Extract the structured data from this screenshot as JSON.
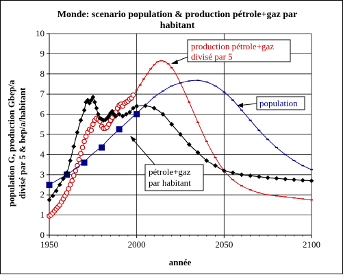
{
  "chart_data": {
    "type": "line",
    "title": "Monde: scenario population & production pétrole+gaz par habitant",
    "title_lines": [
      "Monde: scenario population & production pétrole+gaz par",
      "habitant"
    ],
    "xlabel": "année",
    "ylabel_lines": [
      "population G, production Gbep/a",
      "divisé par 5 & bep/a/habitant"
    ],
    "xlim": [
      1950,
      2100
    ],
    "ylim": [
      0,
      10
    ],
    "xticks": [
      1950,
      2000,
      2050,
      2100
    ],
    "yticks": [
      0,
      1,
      2,
      3,
      4,
      5,
      6,
      7,
      8,
      9,
      10
    ],
    "grid": "major gridlines on both axes",
    "legend": "callout boxes with arrows",
    "colors": {
      "oil_gas_per_capita": "#000000",
      "production": "#cc0000",
      "population": "#00008b"
    },
    "annotations": [
      {
        "series": "production",
        "lines": [
          "production pétrole+gaz",
          "divisé par 5"
        ],
        "color": "#cc0000"
      },
      {
        "series": "population",
        "lines": [
          "population"
        ],
        "color": "#00008b"
      },
      {
        "series": "oil_gas_per_capita",
        "lines": [
          "pétrole+gaz",
          "par habitant"
        ],
        "color": "#000000"
      }
    ],
    "series": [
      {
        "key": "oil_gas_per_capita",
        "marker": "diamond",
        "curve": [
          [
            1950,
            1.8
          ],
          [
            1955,
            2.4
          ],
          [
            1960,
            3.1
          ],
          [
            1962,
            3.7
          ],
          [
            1964,
            4.4
          ],
          [
            1966,
            5.1
          ],
          [
            1968,
            5.7
          ],
          [
            1970,
            6.2
          ],
          [
            1971,
            6.6
          ],
          [
            1972,
            6.7
          ],
          [
            1973,
            6.5
          ],
          [
            1974,
            6.7
          ],
          [
            1975,
            6.85
          ],
          [
            1976,
            6.6
          ],
          [
            1977,
            6.3
          ],
          [
            1978,
            6.0
          ],
          [
            1980,
            5.8
          ],
          [
            1982,
            5.7
          ],
          [
            1984,
            5.8
          ],
          [
            1985,
            6.0
          ],
          [
            1986,
            6.1
          ],
          [
            1987,
            6.0
          ],
          [
            1988,
            5.9
          ],
          [
            1990,
            6.0
          ],
          [
            1992,
            5.9
          ],
          [
            1994,
            6.0
          ],
          [
            1996,
            6.1
          ],
          [
            1998,
            6.3
          ],
          [
            2000,
            6.4
          ],
          [
            2005,
            6.42
          ],
          [
            2010,
            6.3
          ],
          [
            2015,
            6.0
          ],
          [
            2020,
            5.5
          ],
          [
            2025,
            5.0
          ],
          [
            2030,
            4.5
          ],
          [
            2035,
            4.1
          ],
          [
            2040,
            3.7
          ],
          [
            2045,
            3.45
          ],
          [
            2050,
            3.2
          ],
          [
            2055,
            3.1
          ],
          [
            2060,
            3.0
          ],
          [
            2065,
            2.95
          ],
          [
            2070,
            2.9
          ],
          [
            2075,
            2.85
          ],
          [
            2080,
            2.82
          ],
          [
            2090,
            2.75
          ],
          [
            2100,
            2.7
          ]
        ],
        "markers": [
          [
            1950,
            1.75
          ],
          [
            1952,
            1.95
          ],
          [
            1954,
            2.2
          ],
          [
            1956,
            2.5
          ],
          [
            1958,
            2.8
          ],
          [
            1960,
            3.1
          ],
          [
            1962,
            3.7
          ],
          [
            1964,
            4.4
          ],
          [
            1966,
            5.1
          ],
          [
            1968,
            5.7
          ],
          [
            1970,
            6.2
          ],
          [
            1971,
            6.6
          ],
          [
            1972,
            6.7
          ],
          [
            1973,
            6.55
          ],
          [
            1974,
            6.7
          ],
          [
            1975,
            6.85
          ],
          [
            1976,
            6.6
          ],
          [
            1977,
            6.3
          ],
          [
            1978,
            6.0
          ],
          [
            1979,
            5.8
          ],
          [
            1980,
            5.75
          ],
          [
            1981,
            5.7
          ],
          [
            1982,
            5.72
          ],
          [
            1983,
            5.8
          ],
          [
            1984,
            5.9
          ],
          [
            1985,
            6.05
          ],
          [
            1986,
            6.15
          ],
          [
            1987,
            6.0
          ],
          [
            1988,
            5.9
          ],
          [
            1990,
            6.0
          ],
          [
            1992,
            5.9
          ],
          [
            1994,
            6.0
          ],
          [
            1996,
            6.1
          ],
          [
            1998,
            6.3
          ],
          [
            2000,
            6.4
          ],
          [
            2005,
            6.42
          ],
          [
            2010,
            6.3
          ],
          [
            2015,
            6.0
          ],
          [
            2020,
            5.5
          ],
          [
            2025,
            5.0
          ],
          [
            2030,
            4.5
          ],
          [
            2035,
            4.1
          ],
          [
            2040,
            3.7
          ],
          [
            2045,
            3.45
          ],
          [
            2050,
            3.2
          ],
          [
            2055,
            3.1
          ],
          [
            2060,
            3.0
          ],
          [
            2065,
            2.95
          ],
          [
            2070,
            2.9
          ],
          [
            2075,
            2.85
          ],
          [
            2080,
            2.82
          ],
          [
            2085,
            2.78
          ],
          [
            2090,
            2.75
          ],
          [
            2095,
            2.72
          ],
          [
            2100,
            2.7
          ]
        ]
      },
      {
        "key": "production",
        "marker": "open-circle then small tick",
        "curve": [
          [
            1950,
            0.95
          ],
          [
            1955,
            1.35
          ],
          [
            1960,
            1.95
          ],
          [
            1963,
            2.6
          ],
          [
            1966,
            3.4
          ],
          [
            1969,
            4.3
          ],
          [
            1972,
            5.0
          ],
          [
            1974,
            5.5
          ],
          [
            1976,
            5.8
          ],
          [
            1978,
            5.75
          ],
          [
            1980,
            5.45
          ],
          [
            1982,
            5.3
          ],
          [
            1984,
            5.4
          ],
          [
            1986,
            5.6
          ],
          [
            1988,
            5.9
          ],
          [
            1990,
            6.2
          ],
          [
            1992,
            6.35
          ],
          [
            1994,
            6.5
          ],
          [
            1996,
            6.7
          ],
          [
            1998,
            6.9
          ],
          [
            2000,
            7.2
          ],
          [
            2003,
            7.6
          ],
          [
            2006,
            8.0
          ],
          [
            2009,
            8.35
          ],
          [
            2012,
            8.6
          ],
          [
            2015,
            8.65
          ],
          [
            2018,
            8.5
          ],
          [
            2021,
            8.2
          ],
          [
            2025,
            7.55
          ],
          [
            2030,
            6.6
          ],
          [
            2035,
            5.6
          ],
          [
            2040,
            4.65
          ],
          [
            2045,
            3.85
          ],
          [
            2050,
            3.2
          ],
          [
            2055,
            2.75
          ],
          [
            2060,
            2.45
          ],
          [
            2065,
            2.25
          ],
          [
            2070,
            2.1
          ],
          [
            2075,
            2.0
          ],
          [
            2080,
            1.95
          ],
          [
            2090,
            1.85
          ],
          [
            2100,
            1.75
          ]
        ],
        "circles": [
          [
            1950,
            0.95
          ],
          [
            1951,
            1.0
          ],
          [
            1952,
            1.1
          ],
          [
            1953,
            1.2
          ],
          [
            1954,
            1.3
          ],
          [
            1955,
            1.4
          ],
          [
            1956,
            1.5
          ],
          [
            1957,
            1.65
          ],
          [
            1958,
            1.8
          ],
          [
            1959,
            1.95
          ],
          [
            1960,
            2.1
          ],
          [
            1961,
            2.3
          ],
          [
            1962,
            2.5
          ],
          [
            1963,
            2.7
          ],
          [
            1964,
            2.95
          ],
          [
            1965,
            3.2
          ],
          [
            1966,
            3.45
          ],
          [
            1967,
            3.75
          ],
          [
            1968,
            4.05
          ],
          [
            1969,
            4.35
          ],
          [
            1970,
            4.65
          ],
          [
            1971,
            4.9
          ],
          [
            1972,
            5.1
          ],
          [
            1973,
            5.25
          ],
          [
            1974,
            5.2
          ],
          [
            1975,
            5.5
          ],
          [
            1976,
            5.7
          ],
          [
            1977,
            5.8
          ],
          [
            1978,
            5.75
          ],
          [
            1979,
            5.65
          ],
          [
            1980,
            5.4
          ],
          [
            1981,
            5.3
          ],
          [
            1982,
            5.3
          ],
          [
            1983,
            5.35
          ],
          [
            1984,
            5.5
          ],
          [
            1985,
            5.7
          ],
          [
            1986,
            5.85
          ],
          [
            1987,
            6.0
          ],
          [
            1988,
            6.1
          ],
          [
            1989,
            6.3
          ],
          [
            1990,
            6.45
          ],
          [
            1991,
            6.5
          ],
          [
            1992,
            6.4
          ],
          [
            1993,
            6.55
          ],
          [
            1994,
            6.6
          ],
          [
            1995,
            6.65
          ],
          [
            1996,
            6.75
          ],
          [
            1997,
            6.8
          ],
          [
            1998,
            6.95
          ]
        ],
        "ticks": [
          [
            2000,
            7.2
          ],
          [
            2002,
            7.45
          ],
          [
            2004,
            7.75
          ],
          [
            2006,
            8.0
          ],
          [
            2008,
            8.25
          ],
          [
            2010,
            8.45
          ],
          [
            2012,
            8.6
          ],
          [
            2014,
            8.65
          ],
          [
            2016,
            8.6
          ],
          [
            2018,
            8.5
          ],
          [
            2020,
            8.3
          ],
          [
            2025,
            7.55
          ],
          [
            2030,
            6.6
          ],
          [
            2035,
            5.6
          ],
          [
            2040,
            4.65
          ],
          [
            2045,
            3.85
          ],
          [
            2050,
            3.2
          ],
          [
            2055,
            2.75
          ],
          [
            2060,
            2.45
          ],
          [
            2065,
            2.25
          ],
          [
            2070,
            2.1
          ],
          [
            2075,
            2.0
          ],
          [
            2080,
            1.95
          ],
          [
            2085,
            1.9
          ],
          [
            2090,
            1.85
          ],
          [
            2095,
            1.8
          ],
          [
            2100,
            1.75
          ]
        ]
      },
      {
        "key": "population",
        "marker": "filled square then small tick",
        "curve": [
          [
            1950,
            2.5
          ],
          [
            1955,
            2.75
          ],
          [
            1960,
            3.0
          ],
          [
            1965,
            3.3
          ],
          [
            1970,
            3.65
          ],
          [
            1975,
            4.05
          ],
          [
            1980,
            4.4
          ],
          [
            1985,
            4.85
          ],
          [
            1990,
            5.25
          ],
          [
            1995,
            5.65
          ],
          [
            2000,
            6.05
          ],
          [
            2005,
            6.45
          ],
          [
            2010,
            6.85
          ],
          [
            2015,
            7.15
          ],
          [
            2020,
            7.4
          ],
          [
            2025,
            7.55
          ],
          [
            2030,
            7.65
          ],
          [
            2035,
            7.68
          ],
          [
            2040,
            7.6
          ],
          [
            2045,
            7.4
          ],
          [
            2050,
            7.1
          ],
          [
            2055,
            6.7
          ],
          [
            2060,
            6.2
          ],
          [
            2065,
            5.7
          ],
          [
            2070,
            5.2
          ],
          [
            2075,
            4.75
          ],
          [
            2080,
            4.35
          ],
          [
            2085,
            4.0
          ],
          [
            2090,
            3.7
          ],
          [
            2095,
            3.45
          ],
          [
            2100,
            3.25
          ]
        ],
        "squares": [
          [
            1950,
            2.5
          ],
          [
            1960,
            3.0
          ],
          [
            1970,
            3.6
          ],
          [
            1980,
            4.35
          ],
          [
            1990,
            5.25
          ],
          [
            2000,
            6.0
          ]
        ],
        "ticks": [
          [
            2000,
            6.05
          ],
          [
            2005,
            6.45
          ],
          [
            2010,
            6.85
          ],
          [
            2015,
            7.15
          ],
          [
            2020,
            7.4
          ],
          [
            2025,
            7.55
          ],
          [
            2030,
            7.65
          ],
          [
            2035,
            7.68
          ],
          [
            2040,
            7.6
          ],
          [
            2045,
            7.4
          ],
          [
            2050,
            7.1
          ],
          [
            2055,
            6.7
          ],
          [
            2060,
            6.2
          ],
          [
            2065,
            5.7
          ],
          [
            2070,
            5.2
          ],
          [
            2075,
            4.75
          ],
          [
            2080,
            4.35
          ],
          [
            2085,
            4.0
          ],
          [
            2090,
            3.7
          ],
          [
            2095,
            3.45
          ],
          [
            2100,
            3.25
          ]
        ]
      }
    ]
  }
}
